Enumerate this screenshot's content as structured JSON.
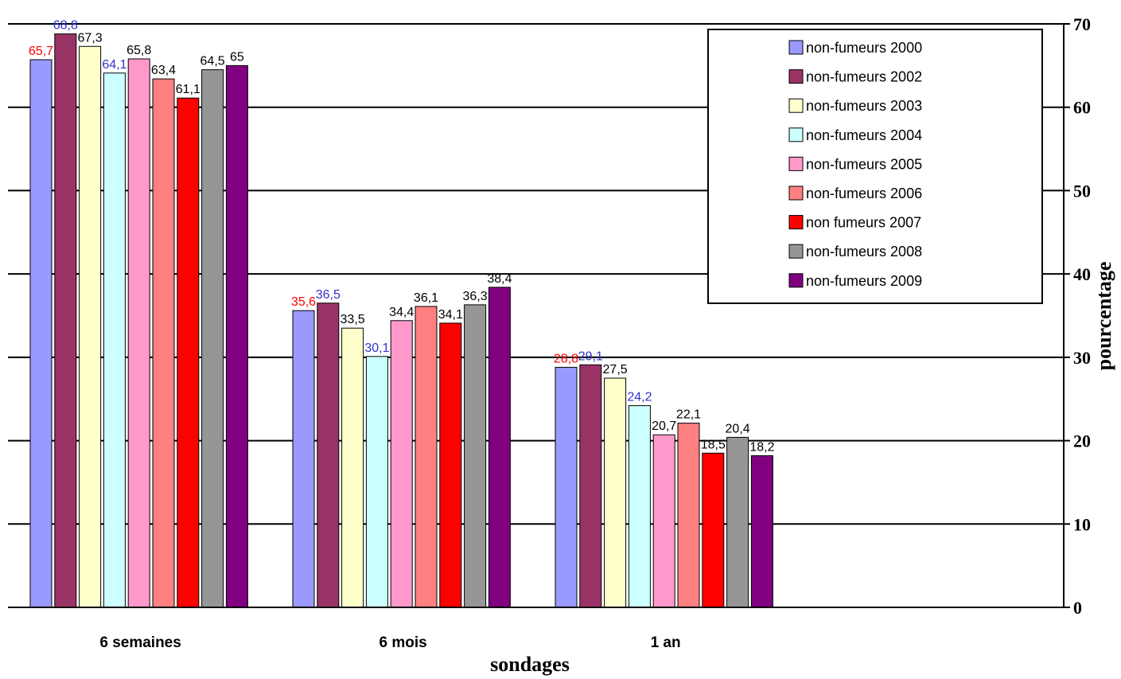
{
  "chart_data": {
    "type": "bar",
    "title": "",
    "xlabel": "sondages",
    "ylabel": "pourcentage",
    "ylim": [
      0,
      70
    ],
    "yticks": [
      "0",
      "10",
      "20",
      "30",
      "40",
      "50",
      "60",
      "70"
    ],
    "grid": true,
    "legend_position": "top-right",
    "axis_side": "right",
    "categories": [
      "6 semaines",
      "6 mois",
      "1 an"
    ],
    "series": [
      {
        "name": "non-fumeurs 2000",
        "color": "#9999FF",
        "label_color": "#FF0000",
        "values": [
          65.7,
          35.6,
          28.8
        ],
        "labels": [
          "65,7",
          "35,6",
          "28,8"
        ]
      },
      {
        "name": "non-fumeurs 2002",
        "color": "#993366",
        "label_color": "#3333CC",
        "values": [
          68.8,
          36.5,
          29.1
        ],
        "labels": [
          "68,8",
          "36,5",
          "29,1"
        ]
      },
      {
        "name": "non-fumeurs 2003",
        "color": "#FFFFCC",
        "label_color": "#000000",
        "values": [
          67.3,
          33.5,
          27.5
        ],
        "labels": [
          "67,3",
          "33,5",
          "27,5"
        ]
      },
      {
        "name": "non-fumeurs 2004",
        "color": "#CCFFFF",
        "label_color": "#3333CC",
        "values": [
          64.1,
          30.1,
          24.2
        ],
        "labels": [
          "64,1",
          "30,1",
          "24,2"
        ]
      },
      {
        "name": "non-fumeurs 2005",
        "color": "#FF99CC",
        "label_color": "#000000",
        "values": [
          65.8,
          34.4,
          20.7
        ],
        "labels": [
          "65,8",
          "34,4",
          "20,7"
        ]
      },
      {
        "name": "non-fumeurs 2006",
        "color": "#FF8080",
        "label_color": "#000000",
        "values": [
          63.4,
          36.1,
          22.1
        ],
        "labels": [
          "63,4",
          "36,1",
          "22,1"
        ]
      },
      {
        "name": "non fumeurs 2007",
        "color": "#FF0000",
        "label_color": "#000000",
        "values": [
          61.1,
          34.1,
          18.5
        ],
        "labels": [
          "61,1",
          "34,1",
          "18,5"
        ]
      },
      {
        "name": "non-fumeurs 2008",
        "color": "#969696",
        "label_color": "#000000",
        "values": [
          64.5,
          36.3,
          20.4
        ],
        "labels": [
          "64,5",
          "36,3",
          "20,4"
        ]
      },
      {
        "name": "non-fumeurs 2009",
        "color": "#800080",
        "label_color": "#000000",
        "values": [
          65,
          38.4,
          18.2
        ],
        "labels": [
          "65",
          "38,4",
          "18,2"
        ]
      }
    ]
  }
}
